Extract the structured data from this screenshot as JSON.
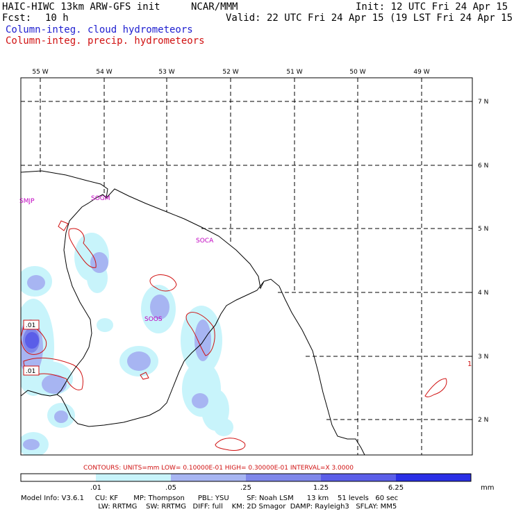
{
  "header": {
    "model_title": "HAIC-HIWC 13km ARW-GFS init",
    "org": "NCAR/MMM",
    "init": "Init: 12 UTC Fri 24 Apr 15",
    "fcst_label": "Fcst:",
    "fcst_value": "10 h",
    "valid": "Valid: 22 UTC Fri 24 Apr 15 (19 LST Fri 24 Apr 15)",
    "field_cloud": "Column-integ. cloud hydrometeors",
    "field_precip": "Column-integ. precip. hydrometeors"
  },
  "map": {
    "lon_labels": [
      "55 W",
      "54 W",
      "53 W",
      "52 W",
      "51 W",
      "50 W",
      "49 W"
    ],
    "lat_labels": [
      "7 N",
      "6 N",
      "5 N",
      "4 N",
      "3 N",
      "2 N"
    ],
    "stations": [
      "SMJP",
      "SOGM",
      "SOCA",
      "SOOS"
    ],
    "contour_labels": [
      ".01",
      ".01"
    ],
    "edge_label": "1",
    "colors": {
      "shade1": "#c8f4fb",
      "shade2": "#a7b5f2",
      "shade3": "#7f87ea",
      "shade4": "#5b5ee8",
      "shade5": "#2a2fe6",
      "contour": "#d01010",
      "station": "#c000c0"
    }
  },
  "contours_info": "CONTOURS:  UNITS=mm  LOW= 0.10000E-01  HIGH= 0.30000E-01  INTERVAL=X  3.0000",
  "colorbar": {
    "ticks": [
      ".01",
      ".05",
      ".25",
      "1.25",
      "6.25"
    ],
    "unit": "mm",
    "colors": [
      "#ffffff",
      "#c8f4fb",
      "#a7b5f2",
      "#7f87ea",
      "#5b5ee8",
      "#2a2fe6"
    ]
  },
  "model_info": {
    "line1": "Model Info: V3.6.1     CU: KF       MP: Thompson      PBL: YSU        SF: Noah LSM      13 km    51 levels   60 sec",
    "line2": "                                   LW: RRTMG    SW: RRTMG   DIFF: full    KM: 2D Smagor  DAMP: Rayleigh3   SFLAY: MM5"
  }
}
